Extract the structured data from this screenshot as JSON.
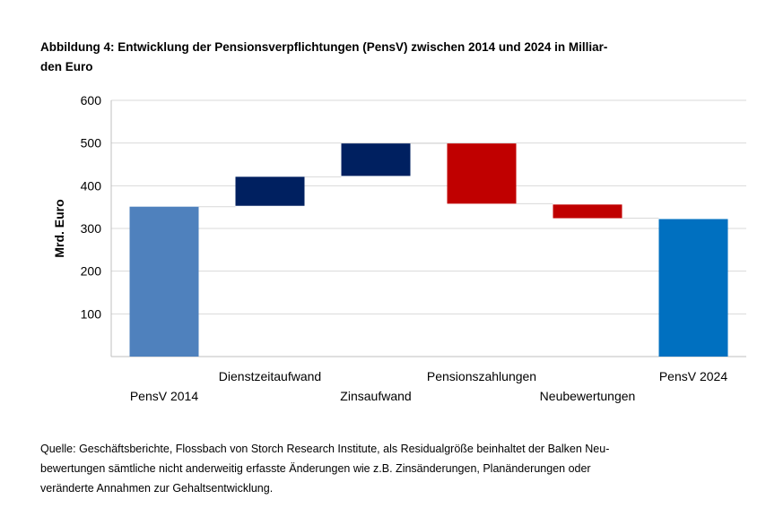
{
  "title_line1": "Abbildung 4: Entwicklung der Pensionsverpflichtungen (PensV) zwischen 2014 und 2024 in Milliar-",
  "title_line2": "den Euro",
  "source_line1": "Quelle: Geschäftsberichte, Flossbach von Storch Research Institute, als Residualgröße beinhaltet der Balken Neu-",
  "source_line2": "bewertungen sämtliche nicht anderweitig erfasste Änderungen wie z.B. Zinsänderungen, Planänderungen oder",
  "source_line3": "veränderte Annahmen zur Gehaltsentwicklung.",
  "chart_data": {
    "type": "bar",
    "subtype": "waterfall",
    "ylabel": "Mrd. Euro",
    "ylim": [
      0,
      600
    ],
    "yticks": [
      100,
      200,
      300,
      400,
      500,
      600
    ],
    "grid": true,
    "categories": [
      "PensV 2014",
      "Dienstzeitaufwand",
      "Zinsaufwand",
      "Pensionszahlungen",
      "Neubewertungen",
      "PensV 2024"
    ],
    "bars": [
      {
        "label": "PensV 2014",
        "start": 0,
        "end": 351,
        "color": "#4f81bd"
      },
      {
        "label": "Dienstzeitaufwand",
        "start": 353,
        "end": 421,
        "color": "#002060"
      },
      {
        "label": "Zinsaufwand",
        "start": 423,
        "end": 499,
        "color": "#002060"
      },
      {
        "label": "Pensionszahlungen",
        "start": 499,
        "end": 358,
        "color": "#c00000"
      },
      {
        "label": "Neubewertungen",
        "start": 356,
        "end": 324,
        "color": "#c00000"
      },
      {
        "label": "PensV 2024",
        "start": 0,
        "end": 322,
        "color": "#0070c0"
      }
    ]
  }
}
